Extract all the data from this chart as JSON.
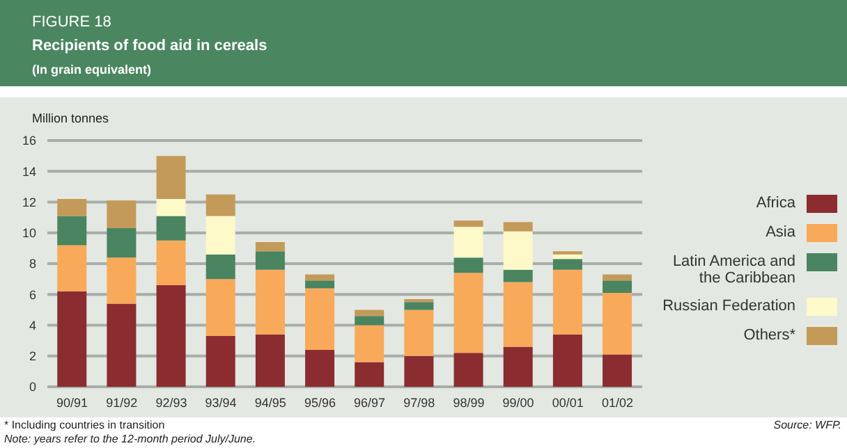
{
  "chart_data": {
    "type": "bar",
    "title": "Recipients of food aid in cereals",
    "subtitle": "(In grain equivalent)",
    "ylabel": "Million tonnes",
    "annotations": [
      "FIGURE 18",
      "* Including countries in transition",
      "Note: years refer to the 12-month period July/June.",
      "Source: WFP."
    ],
    "categories": [
      "90/91",
      "91/92",
      "92/93",
      "93/94",
      "94/95",
      "95/96",
      "96/97",
      "97/98",
      "98/99",
      "99/00",
      "00/01",
      "01/02"
    ],
    "stacked": true,
    "ylim": [
      0,
      16
    ],
    "yticks": [
      0,
      2,
      4,
      6,
      8,
      10,
      12,
      14,
      16
    ],
    "grid": "y",
    "legend": "right",
    "series": [
      {
        "name": "Africa",
        "color": "#8b2c30",
        "values": [
          6.2,
          5.4,
          6.6,
          3.3,
          3.4,
          2.4,
          1.6,
          2.0,
          2.2,
          2.6,
          3.4,
          2.1
        ]
      },
      {
        "name": "Asia",
        "color": "#f9a95a",
        "values": [
          3.0,
          3.0,
          2.9,
          3.7,
          4.2,
          4.0,
          2.4,
          3.0,
          5.2,
          4.2,
          4.2,
          4.0
        ]
      },
      {
        "name": "Latin America and the Caribbean",
        "color": "#4a8460",
        "values": [
          1.9,
          1.9,
          1.6,
          1.6,
          1.2,
          0.5,
          0.6,
          0.5,
          1.0,
          0.8,
          0.7,
          0.8
        ]
      },
      {
        "name": "Russian Federation",
        "color": "#fdf9c8",
        "values": [
          0,
          0,
          1.1,
          2.5,
          0,
          0,
          0,
          0,
          2.0,
          2.5,
          0.3,
          0
        ]
      },
      {
        "name": "Others*",
        "color": "#c49a5a",
        "values": [
          1.1,
          1.8,
          2.8,
          1.4,
          0.6,
          0.4,
          0.4,
          0.2,
          0.4,
          0.6,
          0.2,
          0.4
        ]
      }
    ]
  }
}
